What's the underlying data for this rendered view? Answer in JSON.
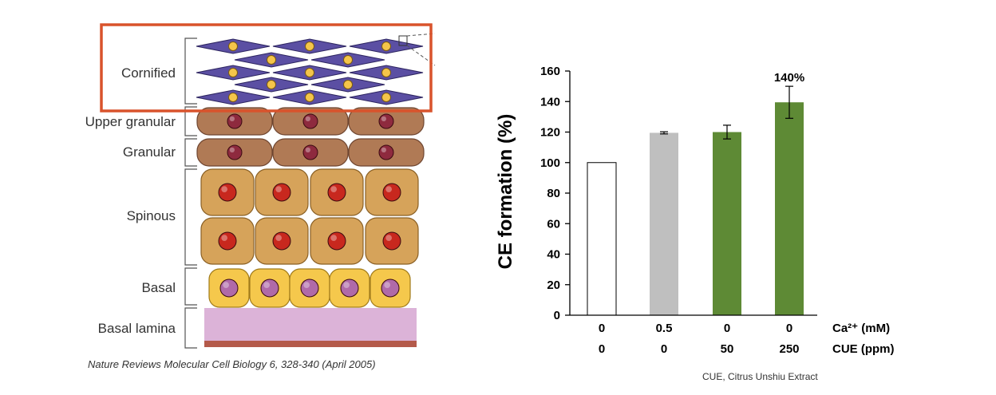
{
  "diagram": {
    "layers": [
      {
        "label": "Cornified"
      },
      {
        "label": "Upper granular"
      },
      {
        "label": "Granular"
      },
      {
        "label": "Spinous"
      },
      {
        "label": "Basal"
      },
      {
        "label": "Basal lamina"
      }
    ],
    "citation": "Nature Reviews Molecular Cell Biology 6, 328-340 (April 2005)",
    "colors": {
      "highlight_box": "#d9532c",
      "cornified_cell": "#5b4fa3",
      "cornified_nucleus": "#f4c54a",
      "granular_cell": "#b07a55",
      "granular_nucleus": "#8e2a3e",
      "spinous_cell": "#d6a35a",
      "spinous_nucleus": "#c8281e",
      "basal_cell": "#f5c84c",
      "basal_nucleus": "#b06aa8",
      "basal_lamina": "#dcb3d8"
    }
  },
  "chart_data": {
    "type": "bar",
    "ylabel": "CE formation (%)",
    "ylim": [
      0,
      160
    ],
    "yticks": [
      0,
      20,
      40,
      60,
      80,
      100,
      120,
      140,
      160
    ],
    "categories": [
      {
        "ca": "0",
        "cue": "0"
      },
      {
        "ca": "0.5",
        "cue": "0"
      },
      {
        "ca": "0",
        "cue": "50"
      },
      {
        "ca": "0",
        "cue": "250"
      }
    ],
    "values": [
      100,
      119.5,
      120,
      139.5
    ],
    "errors": [
      0,
      0.7,
      4.5,
      10.5
    ],
    "bar_colors": [
      "#ffffff",
      "#bfbfbf",
      "#5e8a35",
      "#5e8a35"
    ],
    "annotation": "140%",
    "row_label_ca": "Ca²⁺ (mM)",
    "row_label_cue": "CUE (ppm)",
    "footnote": "CUE, Citrus Unshiu Extract",
    "grid": false
  }
}
